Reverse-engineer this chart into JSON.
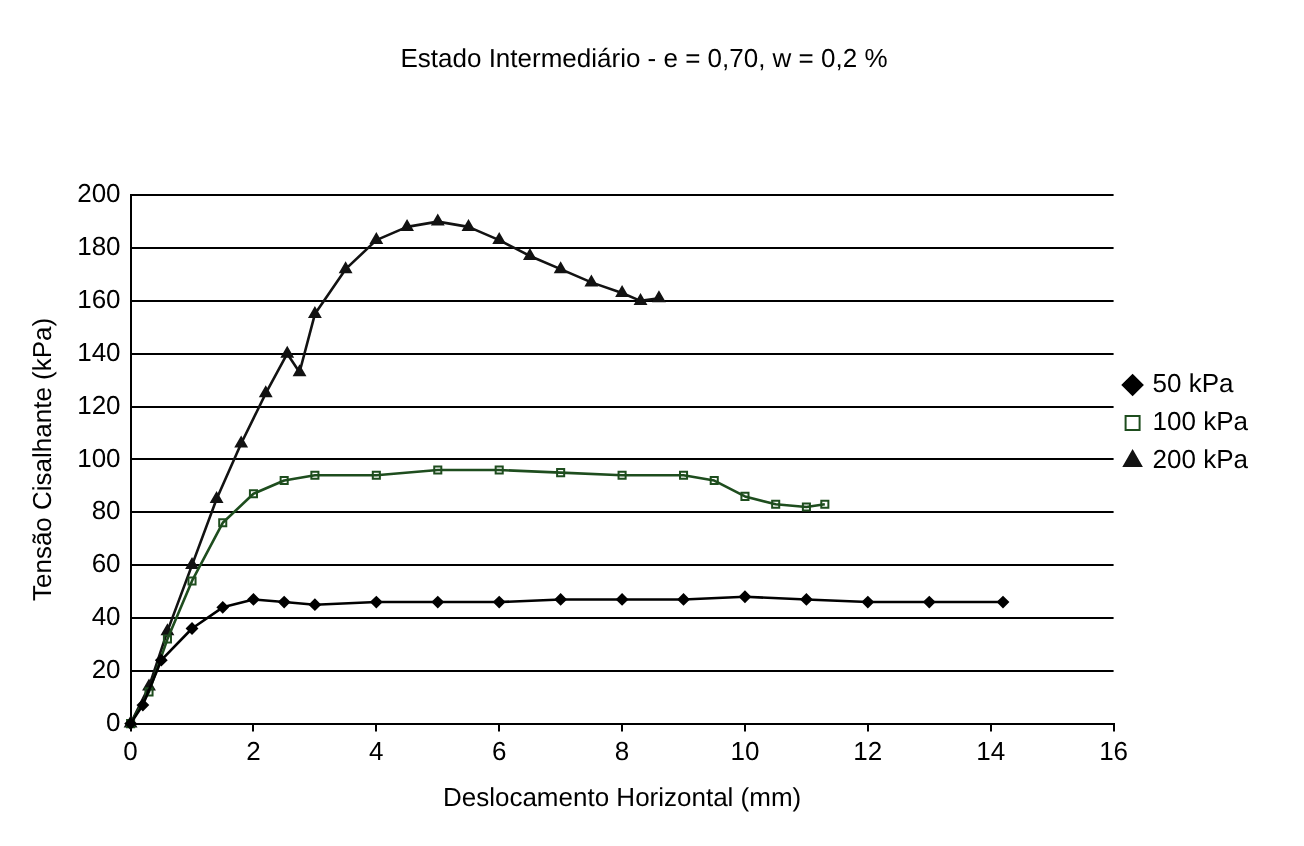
{
  "chart_data": {
    "type": "line",
    "title": "Estado Intermediário - e = 0,70, w = 0,2 %",
    "xlabel": "Deslocamento Horizontal (mm)",
    "ylabel": "Tensão Cisalhante (kPa)",
    "xlim": [
      0,
      16
    ],
    "xticks": [
      0,
      2,
      4,
      6,
      8,
      10,
      12,
      14,
      16
    ],
    "ylim": [
      0,
      200
    ],
    "yticks": [
      0,
      20,
      40,
      60,
      80,
      100,
      120,
      140,
      160,
      180,
      200
    ],
    "grid": "y",
    "legend": "right",
    "series": [
      {
        "name": "50 kPa",
        "color": "#000000",
        "marker": "diamond",
        "x": [
          0,
          0.2,
          0.5,
          1,
          1.5,
          2,
          2.5,
          3,
          4,
          5,
          6,
          7,
          8,
          9,
          10,
          11,
          12,
          13,
          14.2
        ],
        "values": [
          0,
          7,
          24,
          36,
          44,
          47,
          46,
          45,
          46,
          46,
          46,
          47,
          47,
          47,
          48,
          47,
          46,
          46,
          46
        ]
      },
      {
        "name": "100 kPa",
        "color": "#1e4d1e",
        "marker": "square",
        "x": [
          0,
          0.3,
          0.6,
          1,
          1.5,
          2,
          2.5,
          3,
          4,
          5,
          6,
          7,
          8,
          9,
          9.5,
          10,
          10.5,
          11,
          11.3
        ],
        "values": [
          0,
          12,
          32,
          54,
          76,
          87,
          92,
          94,
          94,
          96,
          96,
          95,
          94,
          94,
          92,
          86,
          83,
          82,
          83
        ]
      },
      {
        "name": "200 kPa",
        "color": "#121212",
        "marker": "triangle",
        "x": [
          0,
          0.3,
          0.6,
          1,
          1.4,
          1.8,
          2.2,
          2.55,
          2.75,
          3,
          3.5,
          4,
          4.5,
          5,
          5.5,
          6,
          6.5,
          7,
          7.5,
          8,
          8.3,
          8.6
        ],
        "values": [
          0,
          14,
          35,
          60,
          85,
          106,
          125,
          140,
          133,
          155,
          172,
          183,
          188,
          190,
          188,
          183,
          177,
          172,
          167,
          163,
          160,
          161
        ]
      }
    ]
  }
}
